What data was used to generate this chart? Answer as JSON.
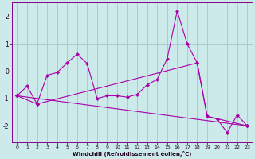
{
  "xlabel": "Windchill (Refroidissement éolien,°C)",
  "bg_color": "#cceaea",
  "grid_color": "#aacccc",
  "line_color": "#aa00aa",
  "x_all": [
    0,
    1,
    2,
    3,
    4,
    5,
    6,
    7,
    8,
    9,
    10,
    11,
    12,
    13,
    14,
    15,
    16,
    17,
    18,
    19,
    20,
    21,
    22,
    23
  ],
  "line1_y": [
    -0.9,
    -0.55,
    -1.2,
    -0.15,
    -0.05,
    0.3,
    0.62,
    0.28,
    -1.0,
    -0.9,
    -0.9,
    -0.95,
    -0.85,
    -0.5,
    -0.3,
    0.45,
    2.2,
    1.0,
    0.3,
    -1.65,
    -1.75,
    -2.25,
    -1.6,
    -2.0
  ],
  "line2_x": [
    0,
    23
  ],
  "line2_y": [
    -0.9,
    -2.0
  ],
  "line3_x": [
    0,
    2,
    18,
    19,
    23
  ],
  "line3_y": [
    -0.9,
    -1.2,
    0.3,
    -1.65,
    -2.0
  ],
  "ylim": [
    -2.6,
    2.5
  ],
  "yticks": [
    -2,
    -1,
    0,
    1,
    2
  ],
  "xticks": [
    0,
    1,
    2,
    3,
    4,
    5,
    6,
    7,
    8,
    9,
    10,
    11,
    12,
    13,
    14,
    15,
    16,
    17,
    18,
    19,
    20,
    21,
    22,
    23
  ]
}
